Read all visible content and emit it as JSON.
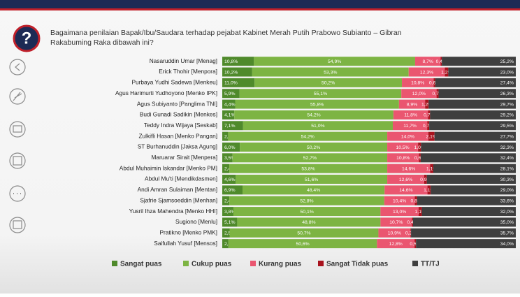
{
  "chart_data": {
    "type": "stacked-bar-horizontal",
    "title": "Bagaimana penilaian Bapak/Ibu/Saudara terhadap pejabat Kabinet Merah Putih Prabowo Subianto – Gibran Rakabuming Raka dibawah ini?",
    "categories": [
      "Nasaruddin Umar [Menag]",
      "Erick Thohir [Menpora]",
      "Purbaya Yudhi Sadewa [Menkeu]",
      "Agus Harimurti Yudhoyono [Menko IPK]",
      "Agus Subiyanto [Panglima TNI]",
      "Budi Gunadi Sadikin [Menkes]",
      "Teddy Indra Wijaya [Seskab]",
      "Zulkifli Hasan [Menko Pangan]",
      "ST Burhanuddin [Jaksa Agung]",
      "Maruarar Sirait [Menpera]",
      "Abdul Muhaimin Iskandar [Menko PM]",
      "Abdul Mu'ti [Mendikdasmen]",
      "Andi Amran Sulaiman [Mentan]",
      "Sjafrie Sjamsoeddin [Menhan]",
      "Yusril Ihza Mahendra [Menko HHI]",
      "Sugiono [Menlu]",
      "Pratikno [Menko PMK]",
      "Saifullah Yusuf [Mensos]"
    ],
    "series": [
      {
        "name": "Sangat puas",
        "color": "#4f8a2b",
        "values": [
          10.8,
          10.2,
          11.0,
          5.9,
          4.4,
          4.1,
          7.1,
          2.0,
          6.0,
          3.5,
          2.4,
          4.6,
          6.9,
          2.4,
          3.8,
          5.1,
          2.5,
          2.1
        ],
        "value_labels": [
          "10,8%",
          "10,2%",
          "11,0%",
          "5,9%",
          "4,4%",
          "4,1%",
          "7,1%",
          "2,0%",
          "6,0%",
          "3,5%",
          "2,4%",
          "4,6%",
          "6,9%",
          "2,4%",
          "3,8%",
          "5,1%",
          "2,5%",
          "2,1%"
        ]
      },
      {
        "name": "Cukup puas",
        "color": "#7db443",
        "values": [
          54.9,
          53.3,
          50.2,
          55.1,
          55.8,
          54.2,
          51.0,
          54.2,
          50.2,
          52.7,
          53.8,
          51.6,
          48.4,
          52.8,
          50.1,
          48.8,
          50.7,
          50.6
        ],
        "value_labels": [
          "54,9%",
          "53,3%",
          "50,2%",
          "55,1%",
          "55,8%",
          "54,2%",
          "51,0%",
          "54,2%",
          "50,2%",
          "52,7%",
          "53,8%",
          "51,6%",
          "48,4%",
          "52,8%",
          "50,1%",
          "48,8%",
          "50,7%",
          "50,6%"
        ]
      },
      {
        "name": "Kurang puas",
        "color": "#ea5670",
        "values": [
          8.7,
          12.3,
          10.8,
          12.0,
          8.9,
          11.8,
          11.7,
          14.0,
          10.5,
          10.8,
          14.6,
          12.6,
          14.6,
          10.4,
          13.0,
          10.7,
          10.9,
          12.8
        ],
        "value_labels": [
          "8,7%",
          "12,3%",
          "10,8%",
          "12,0%",
          "8,9%",
          "11,8%",
          "11,7%",
          "14,0%",
          "10,5%",
          "10,8%",
          "14,6%",
          "12,6%",
          "14,6%",
          "10,4%",
          "13,0%",
          "10,7%",
          "10,9%",
          "12,8%"
        ]
      },
      {
        "name": "Sangat Tidak puas",
        "color": "#a8121d",
        "values": [
          0.4,
          1.2,
          0.6,
          0.7,
          1.2,
          0.7,
          0.7,
          2.1,
          1.0,
          0.6,
          1.1,
          0.9,
          1.1,
          0.8,
          1.1,
          0.4,
          0.2,
          0.5
        ],
        "value_labels": [
          "0,4%",
          "1,2%",
          "0,6%",
          "0,7%",
          "1,2%",
          "0,7%",
          "0,7%",
          "2,1%",
          "1,0%",
          "0,6%",
          "1,1%",
          "0,9%",
          "1,1%",
          "0,8%",
          "1,1%",
          "0,4%",
          "0,2%",
          "0,5%"
        ]
      },
      {
        "name": "TT/TJ",
        "color": "#3f3f3f",
        "values": [
          25.2,
          23.0,
          27.4,
          26.3,
          29.7,
          29.2,
          29.5,
          27.7,
          32.3,
          32.4,
          28.1,
          30.3,
          29.0,
          33.6,
          32.0,
          35.0,
          35.7,
          34.0
        ],
        "value_labels": [
          "25,2%",
          "23,0%",
          "27,4%",
          "26,3%",
          "29,7%",
          "29,2%",
          "29,5%",
          "27,7%",
          "32,3%",
          "32,4%",
          "28,1%",
          "30,3%",
          "29,0%",
          "33,6%",
          "32,0%",
          "35,0%",
          "35,7%",
          "34,0%"
        ]
      }
    ],
    "xlim": [
      0,
      100
    ],
    "legend": "bottom"
  }
}
